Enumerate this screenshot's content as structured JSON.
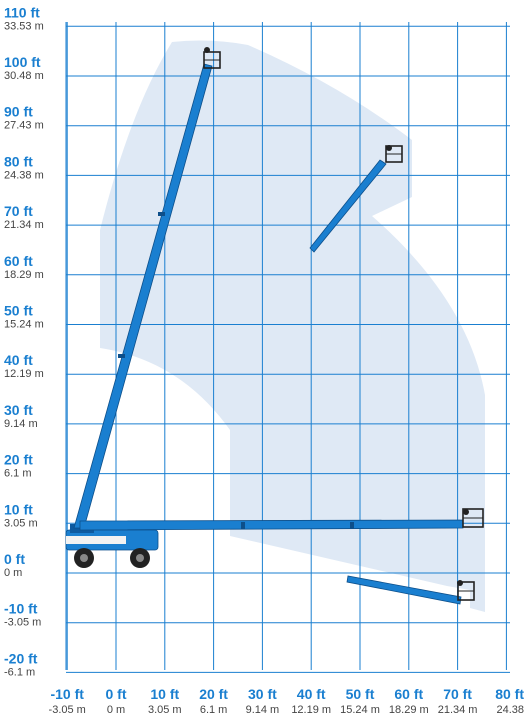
{
  "diagram": {
    "colors": {
      "grid": "#1a7fd0",
      "envelope": "#dfe9f5",
      "boom": "#1a7fd0",
      "ft_label": "#1a7fd0",
      "m_label": "#444444"
    },
    "y_axis": [
      {
        "ft": "110 ft",
        "m": "33.53 m",
        "value_ft": 110
      },
      {
        "ft": "100 ft",
        "m": "30.48 m",
        "value_ft": 100
      },
      {
        "ft": "90 ft",
        "m": "27.43 m",
        "value_ft": 90
      },
      {
        "ft": "80 ft",
        "m": "24.38 m",
        "value_ft": 80
      },
      {
        "ft": "70 ft",
        "m": "21.34 m",
        "value_ft": 70
      },
      {
        "ft": "60 ft",
        "m": "18.29 m",
        "value_ft": 60
      },
      {
        "ft": "50 ft",
        "m": "15.24 m",
        "value_ft": 50
      },
      {
        "ft": "40 ft",
        "m": "12.19 m",
        "value_ft": 40
      },
      {
        "ft": "30 ft",
        "m": "9.14 m",
        "value_ft": 30
      },
      {
        "ft": "20 ft",
        "m": "6.1 m",
        "value_ft": 20
      },
      {
        "ft": "10 ft",
        "m": "3.05 m",
        "value_ft": 10
      },
      {
        "ft": "0 ft",
        "m": "0 m",
        "value_ft": 0
      },
      {
        "ft": "-10 ft",
        "m": "-3.05 m",
        "value_ft": -10
      },
      {
        "ft": "-20 ft",
        "m": "-6.1 m",
        "value_ft": -20
      }
    ],
    "x_axis": [
      {
        "ft": "-10 ft",
        "m": "-3.05 m",
        "value_ft": -10
      },
      {
        "ft": "0 ft",
        "m": "0 m",
        "value_ft": 0
      },
      {
        "ft": "10 ft",
        "m": "3.05 m",
        "value_ft": 10
      },
      {
        "ft": "20 ft",
        "m": "6.1 m",
        "value_ft": 20
      },
      {
        "ft": "30 ft",
        "m": "9.14 m",
        "value_ft": 30
      },
      {
        "ft": "40 ft",
        "m": "12.19 m",
        "value_ft": 40
      },
      {
        "ft": "50 ft",
        "m": "15.24 m",
        "value_ft": 50
      },
      {
        "ft": "60 ft",
        "m": "18.29 m",
        "value_ft": 60
      },
      {
        "ft": "70 ft",
        "m": "21.34 m",
        "value_ft": 70
      },
      {
        "ft": "80 ft",
        "m": "24.38",
        "value_ft": 80
      }
    ]
  }
}
